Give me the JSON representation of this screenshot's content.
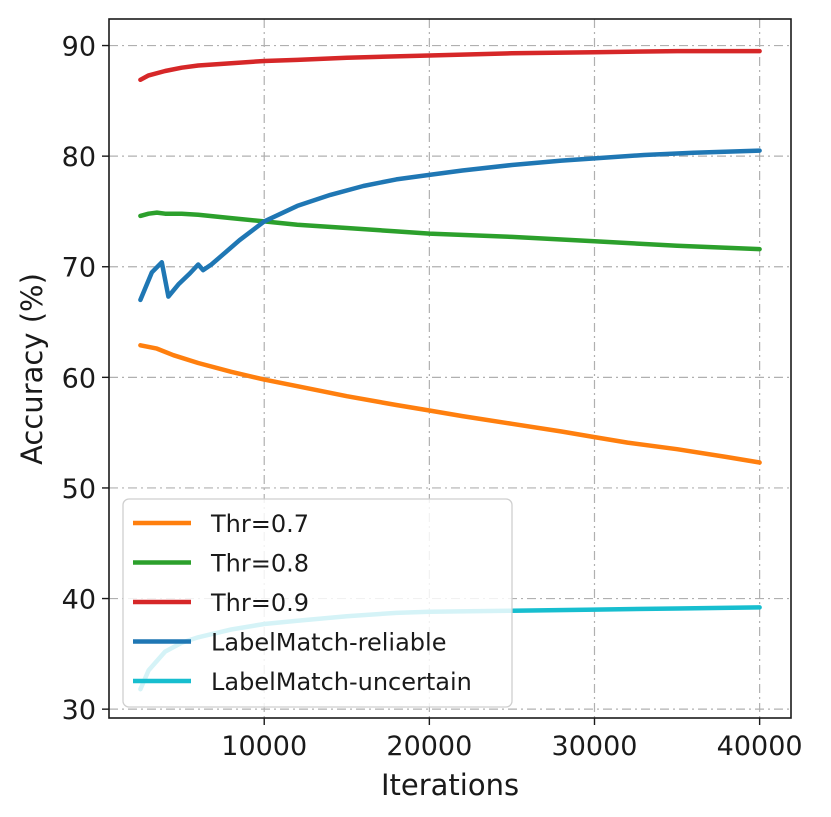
{
  "chart_data": {
    "type": "line",
    "title": "",
    "xlabel": "Iterations",
    "ylabel": "Accuracy (%)",
    "xlim": [
      600,
      41900
    ],
    "ylim": [
      29.2,
      92.4
    ],
    "xticks": [
      10000,
      20000,
      30000,
      40000
    ],
    "xtick_labels": [
      "10000",
      "20000",
      "30000",
      "40000"
    ],
    "yticks": [
      30,
      40,
      50,
      60,
      70,
      80,
      90
    ],
    "ytick_labels": [
      "30",
      "40",
      "50",
      "60",
      "70",
      "80",
      "90"
    ],
    "grid": true,
    "legend_position": "lower-left",
    "series": [
      {
        "name": "Thr=0.7",
        "color": "#ff7f0e",
        "x": [
          2500,
          3500,
          4500,
          6000,
          8000,
          10000,
          12000,
          15000,
          18000,
          20000,
          22000,
          25000,
          28000,
          30000,
          32000,
          35000,
          38000,
          40000
        ],
        "y": [
          62.9,
          62.6,
          62.0,
          61.3,
          60.5,
          59.8,
          59.2,
          58.3,
          57.5,
          57.0,
          56.5,
          55.8,
          55.1,
          54.6,
          54.1,
          53.5,
          52.8,
          52.3
        ]
      },
      {
        "name": "Thr=0.8",
        "color": "#2ca02c",
        "x": [
          2500,
          3000,
          3500,
          4000,
          5000,
          6000,
          8000,
          10000,
          12000,
          15000,
          18000,
          20000,
          25000,
          30000,
          35000,
          40000
        ],
        "y": [
          74.6,
          74.8,
          74.9,
          74.8,
          74.8,
          74.7,
          74.4,
          74.1,
          73.8,
          73.5,
          73.2,
          73.0,
          72.7,
          72.3,
          71.9,
          71.6
        ]
      },
      {
        "name": "Thr=0.9",
        "color": "#d62728",
        "x": [
          2500,
          3000,
          4000,
          5000,
          6000,
          8000,
          10000,
          12000,
          15000,
          20000,
          25000,
          30000,
          35000,
          40000
        ],
        "y": [
          86.9,
          87.3,
          87.7,
          88.0,
          88.2,
          88.4,
          88.6,
          88.7,
          88.9,
          89.1,
          89.3,
          89.4,
          89.5,
          89.5
        ]
      },
      {
        "name": "LabelMatch-reliable",
        "color": "#1f77b4",
        "x": [
          2500,
          3200,
          3800,
          4200,
          4800,
          5500,
          6000,
          6300,
          6800,
          7500,
          8500,
          10000,
          12000,
          14000,
          16000,
          18000,
          20000,
          22000,
          25000,
          28000,
          30000,
          33000,
          36000,
          40000
        ],
        "y": [
          67.0,
          69.5,
          70.4,
          67.3,
          68.4,
          69.4,
          70.2,
          69.7,
          70.2,
          71.1,
          72.4,
          74.1,
          75.5,
          76.5,
          77.3,
          77.9,
          78.3,
          78.7,
          79.2,
          79.6,
          79.8,
          80.1,
          80.3,
          80.5
        ]
      },
      {
        "name": "LabelMatch-uncertain",
        "color": "#17becf",
        "x": [
          2500,
          3000,
          4000,
          5000,
          6000,
          8000,
          10000,
          12000,
          15000,
          18000,
          20000,
          25000,
          30000,
          35000,
          40000
        ],
        "y": [
          31.8,
          33.5,
          35.2,
          36.0,
          36.5,
          37.2,
          37.7,
          38.0,
          38.4,
          38.7,
          38.8,
          38.9,
          39.0,
          39.1,
          39.2
        ]
      }
    ]
  }
}
